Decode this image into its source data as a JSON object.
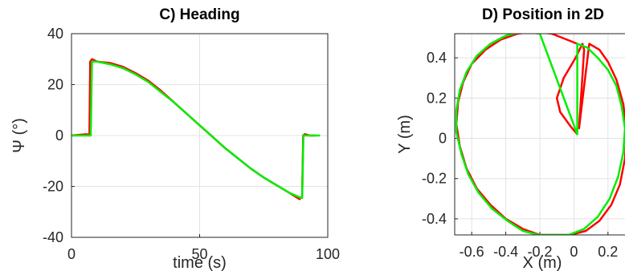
{
  "chart_data": [
    {
      "type": "line",
      "title": "C) Heading",
      "xlabel": "time (s)",
      "ylabel": "Ψ (°)",
      "xlim": [
        0,
        100
      ],
      "ylim": [
        -40,
        40
      ],
      "xticks": [
        "0",
        "50",
        "100"
      ],
      "yticks": [
        "40",
        "20",
        "0",
        "-20",
        "-40"
      ],
      "grid": true,
      "series": [
        {
          "color": "#ff0000",
          "x": [
            0,
            6,
            7,
            7.3,
            8,
            10,
            15,
            20,
            25,
            30,
            35,
            40,
            45,
            50,
            55,
            60,
            65,
            70,
            75,
            80,
            85,
            89,
            90,
            90.4,
            91,
            93,
            95
          ],
          "y": [
            0,
            0.5,
            0,
            29,
            30,
            29,
            28.5,
            27,
            24.5,
            21.5,
            17.5,
            13,
            8.5,
            4,
            -0.5,
            -5,
            -9,
            -13,
            -16.5,
            -19.5,
            -22.5,
            -25,
            -24,
            0,
            0.5,
            0,
            0
          ]
        },
        {
          "color": "#00ee00",
          "x": [
            0,
            6.5,
            7.5,
            8,
            10,
            15,
            20,
            25,
            30,
            35,
            40,
            45,
            50,
            55,
            60,
            65,
            70,
            75,
            80,
            85,
            89.5,
            90,
            90.5,
            92,
            95,
            97
          ],
          "y": [
            0,
            0,
            0,
            29,
            29,
            28,
            26.5,
            24,
            21,
            17,
            13,
            8.5,
            4,
            -0.5,
            -5,
            -9,
            -13,
            -16.5,
            -19.5,
            -22.5,
            -24.5,
            -24.5,
            0,
            0,
            0,
            0
          ]
        }
      ]
    },
    {
      "type": "line",
      "title": "D) Position in 2D",
      "xlabel": "X (m)",
      "ylabel": "Y (m)",
      "xlim": [
        -0.7,
        0.3
      ],
      "ylim": [
        -0.48,
        0.52
      ],
      "xticks": [
        "-0.6",
        "-0.4",
        "-0.2",
        "0",
        "0.2"
      ],
      "yticks": [
        "0.4",
        "0.2",
        "0",
        "-0.2",
        "-0.4"
      ],
      "grid": true,
      "series": [
        {
          "color": "#ff0000",
          "x": [
            0.02,
            -0.02,
            -0.08,
            -0.1,
            -0.06,
            0.01,
            0.05,
            0.06,
            0.03,
            0.09,
            0.15,
            0.2,
            0.25,
            0.29,
            0.31,
            0.3,
            0.27,
            0.22,
            0.15,
            0.07,
            -0.02,
            -0.12,
            -0.2,
            -0.3,
            -0.4,
            -0.49,
            -0.57,
            -0.63,
            -0.67,
            -0.69,
            -0.68,
            -0.65,
            -0.6,
            -0.52,
            -0.43,
            -0.33,
            -0.23,
            -0.13,
            -0.04,
            0.02
          ],
          "y": [
            0.02,
            0.06,
            0.13,
            0.2,
            0.3,
            0.4,
            0.47,
            0.44,
            0.05,
            0.47,
            0.44,
            0.38,
            0.29,
            0.17,
            0.03,
            -0.1,
            -0.23,
            -0.33,
            -0.41,
            -0.46,
            -0.48,
            -0.48,
            -0.48,
            -0.45,
            -0.4,
            -0.33,
            -0.25,
            -0.15,
            -0.04,
            0.07,
            0.18,
            0.28,
            0.37,
            0.44,
            0.49,
            0.52,
            0.53,
            0.52,
            0.49,
            0.47
          ]
        },
        {
          "color": "#00ee00",
          "x": [
            -0.2,
            0.02,
            0.02,
            0.02,
            0.08,
            0.14,
            0.2,
            0.25,
            0.28,
            0.3,
            0.29,
            0.26,
            0.21,
            0.14,
            0.06,
            -0.03,
            -0.12,
            -0.21,
            -0.3,
            -0.39,
            -0.48,
            -0.56,
            -0.62,
            -0.66,
            -0.69,
            -0.69,
            -0.67,
            -0.63,
            -0.57,
            -0.49,
            -0.4,
            -0.3,
            -0.2
          ],
          "y": [
            0.52,
            0.02,
            0.02,
            0.47,
            0.45,
            0.4,
            0.34,
            0.26,
            0.16,
            0.05,
            -0.07,
            -0.19,
            -0.3,
            -0.39,
            -0.45,
            -0.48,
            -0.48,
            -0.48,
            -0.46,
            -0.41,
            -0.35,
            -0.27,
            -0.18,
            -0.08,
            0.03,
            0.14,
            0.24,
            0.33,
            0.41,
            0.47,
            0.51,
            0.53,
            0.52
          ]
        }
      ]
    }
  ]
}
